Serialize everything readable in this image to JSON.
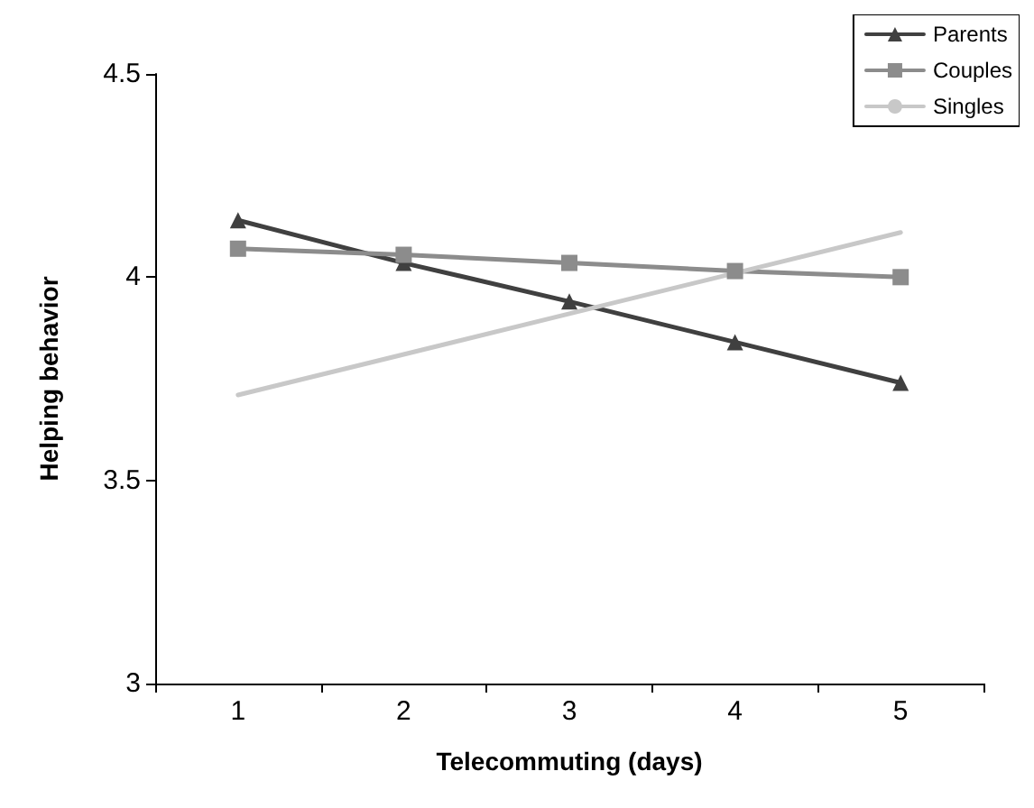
{
  "chart_data": {
    "type": "line",
    "xlabel": "Telecommuting (days)",
    "ylabel": "Helping behavior",
    "categories": [
      "1",
      "2",
      "3",
      "4",
      "5"
    ],
    "ylim": [
      3,
      4.5
    ],
    "yticks": [
      3,
      3.5,
      4,
      4.5
    ],
    "grid": false,
    "legend": "top right",
    "series": [
      {
        "name": "Parents",
        "color": "#404040",
        "marker": "triangle",
        "values": [
          4.14,
          4.035,
          3.94,
          3.84,
          3.74
        ]
      },
      {
        "name": "Couples",
        "color": "#8c8c8c",
        "marker": "square",
        "values": [
          4.07,
          4.055,
          4.035,
          4.015,
          4.0
        ]
      },
      {
        "name": "Singles",
        "color": "#c8c8c8",
        "marker": "none",
        "values": [
          3.71,
          3.81,
          3.91,
          4.01,
          4.11
        ]
      }
    ]
  }
}
